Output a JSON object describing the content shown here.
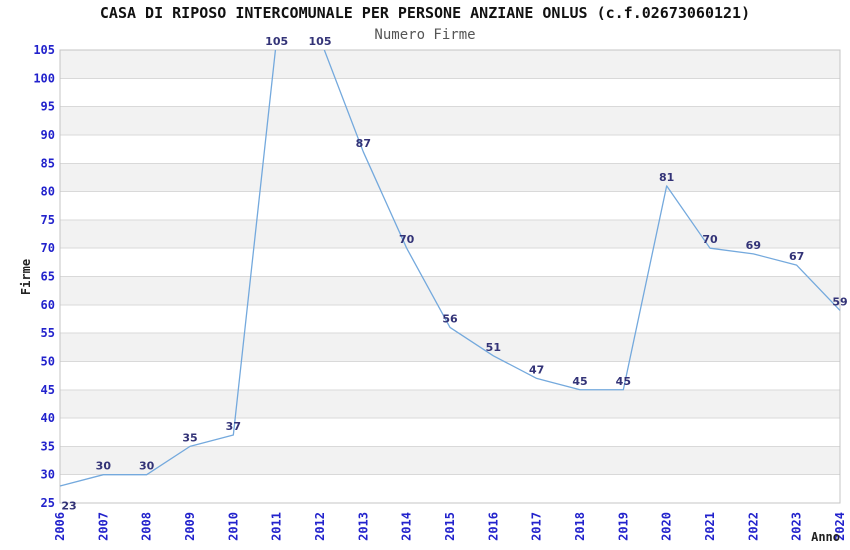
{
  "header": {
    "title": "CASA DI RIPOSO INTERCOMUNALE PER PERSONE ANZIANE ONLUS (c.f.02673060121)",
    "subtitle": "Numero Firme"
  },
  "axes": {
    "y_title": "Firme",
    "x_title": "Anno"
  },
  "chart_data": {
    "type": "line",
    "title": "CASA DI RIPOSO INTERCOMUNALE PER PERSONE ANZIANE ONLUS (c.f.02673060121)",
    "subtitle": "Numero Firme",
    "xlabel": "Anno",
    "ylabel": "Firme",
    "x": [
      "2006",
      "2007",
      "2008",
      "2009",
      "2010",
      "2011",
      "2012",
      "2013",
      "2014",
      "2015",
      "2016",
      "2017",
      "2018",
      "2019",
      "2020",
      "2021",
      "2022",
      "2023",
      "2024"
    ],
    "values": [
      23,
      30,
      30,
      35,
      37,
      105,
      105,
      87,
      70,
      56,
      51,
      47,
      45,
      45,
      81,
      70,
      69,
      67,
      59
    ],
    "ylim": [
      25,
      105
    ],
    "ytick_step": 5,
    "grid": "horizontal",
    "banding": "alternating-light-gray",
    "legend": "none",
    "line_color": "#74a9dd",
    "tick_label_color": "#2222cc",
    "point_label_color": "#333377",
    "band_color": "#f2f2f2",
    "gridline_color": "#d9d9d9",
    "border_color": "#c4c4c4",
    "render_values": [
      28,
      30,
      30,
      35,
      37,
      107,
      107,
      87,
      70,
      56,
      51,
      47,
      45,
      45,
      81,
      70,
      69,
      67,
      59
    ],
    "label_dx": {
      "0": 9
    }
  }
}
